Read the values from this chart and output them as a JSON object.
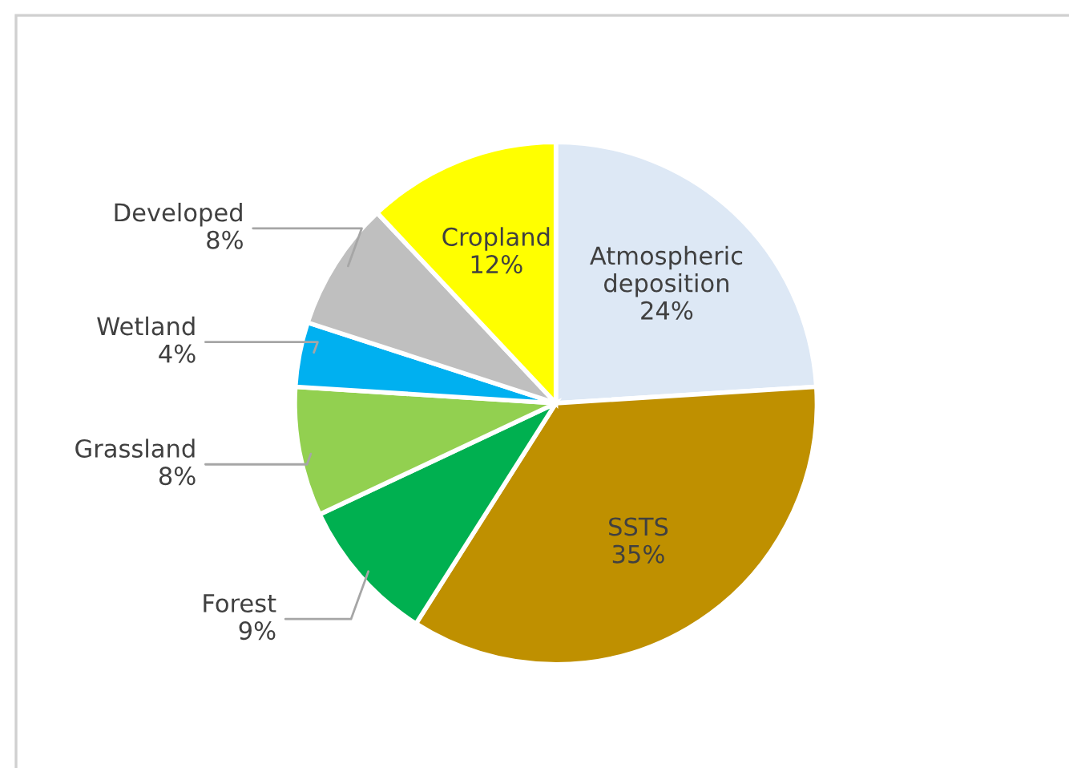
{
  "chart_data": {
    "type": "pie",
    "categories": [
      "Atmospheric deposition",
      "SSTS",
      "Forest",
      "Grassland",
      "Wetland",
      "Developed",
      "Cropland"
    ],
    "values": [
      24,
      35,
      9,
      8,
      4,
      8,
      12
    ],
    "colors": [
      "#dde8f5",
      "#bf9000",
      "#00b050",
      "#92d050",
      "#00b0f0",
      "#bfbfbf",
      "#ffff00"
    ],
    "value_labels": [
      "24%",
      "35%",
      "9%",
      "8%",
      "4%",
      "8%",
      "12%"
    ],
    "legend": false
  }
}
